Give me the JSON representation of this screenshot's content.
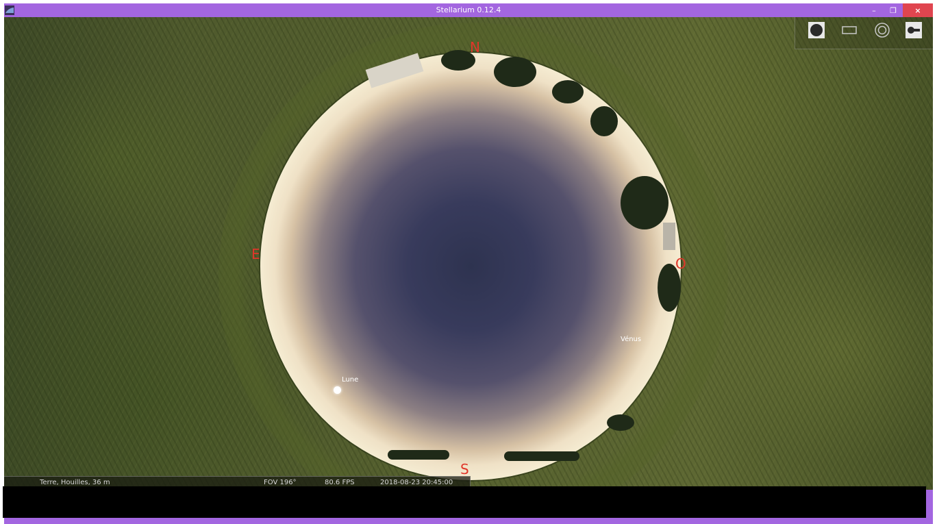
{
  "window": {
    "title": "Stellarium 0.12.4",
    "controls": {
      "minimize": "–",
      "restore": "❐",
      "close": "×"
    }
  },
  "sky": {
    "compass": {
      "north": "N",
      "south": "S",
      "east": "E",
      "west": "O"
    },
    "objects": {
      "moon_label": "Lune",
      "venus_label": "Vénus"
    }
  },
  "toolbar": {
    "buttons": [
      "fullscreen-circle-icon",
      "screen-ratio-icon",
      "target-icon",
      "settings-key-icon"
    ]
  },
  "status": {
    "location": "Terre, Houilles, 36 m",
    "fov": "FOV 196°",
    "fps": "80.6 FPS",
    "datetime": "2018-08-23  20:45:00"
  },
  "colors": {
    "window_frame": "#a366e0",
    "compass_red": "#e0362a",
    "close_button": "#e0454f"
  }
}
